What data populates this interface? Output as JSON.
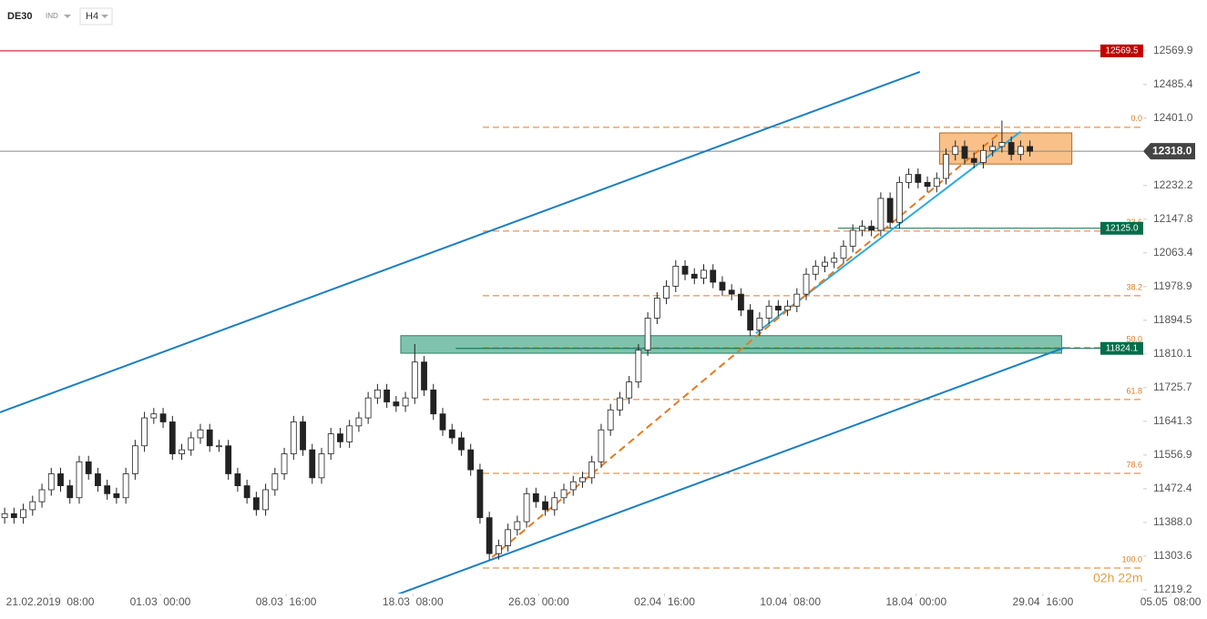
{
  "header": {
    "symbol": "DE30",
    "market": "IND",
    "interval": "H4"
  },
  "chart_data": {
    "type": "candlestick",
    "ylim": [
      11210,
      12697
    ],
    "xlim": [
      -0.5,
      129
    ],
    "yticks": [
      12569.9,
      12485.4,
      {
        "value": 12401,
        "label": "12401.0"
      },
      12232.2,
      12147.8,
      12063.4,
      11978.9,
      11894.5,
      11810.1,
      11725.7,
      11641.3,
      11556.9,
      11472.4,
      {
        "value": 11388,
        "label": "11388.0"
      },
      11303.6,
      11219.2
    ],
    "xticks": [
      {
        "value": 4.88,
        "label": "21.02.2019  08:00"
      },
      {
        "value": 16.7,
        "label": "01.03  00:00"
      },
      {
        "value": 30.2,
        "label": "08.03  16:00"
      },
      {
        "value": 43.8,
        "label": "18.03  08:00"
      },
      {
        "value": 57.3,
        "label": "26.03  00:00"
      },
      {
        "value": 70.8,
        "label": "02.04  16:00"
      },
      {
        "value": 84.3,
        "label": "10.04  08:00"
      },
      {
        "value": 97.8,
        "label": "18.04  00:00"
      },
      {
        "value": 111.4,
        "label": "29.04  16:00"
      },
      {
        "value": 125.1,
        "label": "05.05  08:00"
      }
    ],
    "up_color": "#ffffff",
    "down_color": "#222222",
    "edge_color": "#222222",
    "candles": [
      [
        11400,
        11425,
        11385,
        11410
      ],
      [
        11410,
        11425,
        11385,
        11400
      ],
      [
        11400,
        11435,
        11385,
        11420
      ],
      [
        11420,
        11455,
        11405,
        11440
      ],
      [
        11440,
        11485,
        11425,
        11470
      ],
      [
        11470,
        11525,
        11455,
        11510
      ],
      [
        11510,
        11525,
        11465,
        11480
      ],
      [
        11480,
        11495,
        11435,
        11450
      ],
      [
        11450,
        11555,
        11435,
        11540
      ],
      [
        11540,
        11555,
        11495,
        11510
      ],
      [
        11510,
        11525,
        11465,
        11480
      ],
      [
        11480,
        11495,
        11445,
        11460
      ],
      [
        11460,
        11475,
        11435,
        11450
      ],
      [
        11450,
        11525,
        11435,
        11510
      ],
      [
        11510,
        11595,
        11495,
        11580
      ],
      [
        11580,
        11665,
        11565,
        11650
      ],
      [
        11650,
        11675,
        11635,
        11660
      ],
      [
        11660,
        11675,
        11625,
        11640
      ],
      [
        11640,
        11655,
        11545,
        11560
      ],
      [
        11560,
        11585,
        11545,
        11570
      ],
      [
        11570,
        11615,
        11555,
        11600
      ],
      [
        11600,
        11635,
        11585,
        11620
      ],
      [
        11620,
        11635,
        11565,
        11580
      ],
      [
        11580,
        11595,
        11565,
        11580
      ],
      [
        11580,
        11595,
        11495,
        11510
      ],
      [
        11510,
        11525,
        11465,
        11480
      ],
      [
        11480,
        11495,
        11435,
        11450
      ],
      [
        11450,
        11465,
        11405,
        11420
      ],
      [
        11420,
        11485,
        11405,
        11470
      ],
      [
        11470,
        11525,
        11455,
        11510
      ],
      [
        11510,
        11575,
        11495,
        11560
      ],
      [
        11560,
        11655,
        11545,
        11640
      ],
      [
        11640,
        11655,
        11555,
        11570
      ],
      [
        11570,
        11585,
        11485,
        11500
      ],
      [
        11500,
        11575,
        11485,
        11560
      ],
      [
        11560,
        11625,
        11545,
        11610
      ],
      [
        11610,
        11625,
        11575,
        11590
      ],
      [
        11590,
        11645,
        11575,
        11630
      ],
      [
        11630,
        11665,
        11615,
        11650
      ],
      [
        11650,
        11715,
        11635,
        11700
      ],
      [
        11700,
        11735,
        11685,
        11720
      ],
      [
        11720,
        11735,
        11675,
        11690
      ],
      [
        11690,
        11705,
        11665,
        11680
      ],
      [
        11680,
        11715,
        11665,
        11700
      ],
      [
        11700,
        11835,
        11685,
        11790
      ],
      [
        11790,
        11805,
        11705,
        11720
      ],
      [
        11720,
        11735,
        11645,
        11660
      ],
      [
        11660,
        11675,
        11605,
        11620
      ],
      [
        11620,
        11635,
        11585,
        11600
      ],
      [
        11600,
        11615,
        11555,
        11570
      ],
      [
        11570,
        11585,
        11505,
        11520
      ],
      [
        11520,
        11535,
        11385,
        11400
      ],
      [
        11400,
        11415,
        11295,
        11310
      ],
      [
        11310,
        11345,
        11295,
        11330
      ],
      [
        11330,
        11385,
        11315,
        11370
      ],
      [
        11370,
        11405,
        11355,
        11390
      ],
      [
        11390,
        11475,
        11375,
        11460
      ],
      [
        11460,
        11475,
        11425,
        11440
      ],
      [
        11440,
        11455,
        11405,
        11420
      ],
      [
        11420,
        11465,
        11405,
        11450
      ],
      [
        11450,
        11485,
        11435,
        11470
      ],
      [
        11470,
        11505,
        11455,
        11490
      ],
      [
        11490,
        11515,
        11475,
        11500
      ],
      [
        11500,
        11555,
        11485,
        11540
      ],
      [
        11540,
        11635,
        11525,
        11620
      ],
      [
        11620,
        11685,
        11605,
        11670
      ],
      [
        11670,
        11715,
        11655,
        11700
      ],
      [
        11700,
        11755,
        11685,
        11740
      ],
      [
        11740,
        11835,
        11725,
        11820
      ],
      [
        11820,
        11915,
        11805,
        11900
      ],
      [
        11900,
        11965,
        11885,
        11950
      ],
      [
        11950,
        11995,
        11935,
        11980
      ],
      [
        11980,
        12045,
        11965,
        12030
      ],
      [
        12030,
        12045,
        11995,
        12010
      ],
      [
        12010,
        12025,
        11985,
        12000
      ],
      [
        12000,
        12035,
        11985,
        12020
      ],
      [
        12020,
        12035,
        11975,
        11990
      ],
      [
        11990,
        12005,
        11955,
        11970
      ],
      [
        11970,
        11985,
        11945,
        11960
      ],
      [
        11960,
        11975,
        11905,
        11920
      ],
      [
        11920,
        11935,
        11855,
        11870
      ],
      [
        11870,
        11915,
        11855,
        11900
      ],
      [
        11900,
        11945,
        11885,
        11930
      ],
      [
        11930,
        11945,
        11905,
        11920
      ],
      [
        11920,
        11945,
        11905,
        11930
      ],
      [
        11930,
        11975,
        11915,
        11960
      ],
      [
        11960,
        12025,
        11945,
        12010
      ],
      [
        12010,
        12045,
        11995,
        12030
      ],
      [
        12030,
        12055,
        12015,
        12040
      ],
      [
        12040,
        12065,
        12025,
        12050
      ],
      [
        12050,
        12095,
        12035,
        12080
      ],
      [
        12080,
        12135,
        12065,
        12120
      ],
      [
        12120,
        12145,
        12105,
        12130
      ],
      [
        12130,
        12145,
        12105,
        12120
      ],
      [
        12120,
        12215,
        12105,
        12200
      ],
      [
        12200,
        12215,
        12125,
        12140
      ],
      [
        12140,
        12255,
        12125,
        12240
      ],
      [
        12240,
        12275,
        12225,
        12260
      ],
      [
        12260,
        12275,
        12225,
        12240
      ],
      [
        12240,
        12255,
        12215,
        12230
      ],
      [
        12230,
        12265,
        12215,
        12250
      ],
      [
        12250,
        12325,
        12235,
        12310
      ],
      [
        12310,
        12345,
        12295,
        12330
      ],
      [
        12330,
        12345,
        12285,
        12300
      ],
      [
        12300,
        12315,
        12275,
        12290
      ],
      [
        12290,
        12335,
        12275,
        12320
      ],
      [
        12320,
        12345,
        12305,
        12330
      ],
      [
        12330,
        12395,
        12315,
        12340
      ],
      [
        12340,
        12355,
        12295,
        12310
      ],
      [
        12310,
        12345,
        12295,
        12330
      ],
      [
        12330,
        12345,
        12305,
        12318
      ]
    ],
    "current_price": {
      "value": 12318,
      "label": "12318.0",
      "color": "#888888",
      "label_color": "#444444"
    },
    "levels": [
      {
        "value": 12569.5,
        "label": "12569.5",
        "color": "#c00000",
        "x_start": -0.5
      },
      {
        "value": 12125,
        "label": "12125.0",
        "color": "#006e4a",
        "x_start": 89.4
      },
      {
        "value": 11824.1,
        "label": "11824.1",
        "color": "#006e4a",
        "x_start": 48.4
      }
    ],
    "fibonacci": {
      "color": "#e07b22",
      "x_start": 51.3,
      "x_end": 122.2,
      "levels": [
        {
          "label": "0.0",
          "price": 12378
        },
        {
          "label": "23.6",
          "price": 12118
        },
        {
          "label": "38.2",
          "price": 11956
        },
        {
          "label": "50.0",
          "price": 11826
        },
        {
          "label": "61.8",
          "price": 11696
        },
        {
          "label": "78.6",
          "price": 11511
        },
        {
          "label": "100.0",
          "price": 11274
        }
      ]
    },
    "trend_lines": [
      {
        "color": "#1a7fc1",
        "dashed": false,
        "points": [
          [
            -0.5,
            11664
          ],
          [
            98.2,
            12517
          ]
        ]
      },
      {
        "color": "#1a7fc1",
        "dashed": false,
        "points": [
          [
            41.6,
            11203
          ],
          [
            113.7,
            11826
          ]
        ]
      },
      {
        "color": "#29abe2",
        "dashed": false,
        "points": [
          [
            80.6,
            11862
          ],
          [
            109,
            12367
          ]
        ]
      },
      {
        "color": "#e07b22",
        "dashed": true,
        "points": [
          [
            52.3,
            11301
          ],
          [
            106.5,
            12359
          ]
        ]
      }
    ],
    "zones": [
      {
        "x": [
          42.5,
          113.4
        ],
        "y": [
          11812,
          11856
        ],
        "fill": "#5fb49b",
        "stroke": "#2d7d63"
      },
      {
        "x": [
          100.3,
          114.5
        ],
        "y": [
          12286,
          12364
        ],
        "fill": "#f7b26b",
        "stroke": "#b56a1e"
      }
    ],
    "countdown": "02h 22m"
  }
}
